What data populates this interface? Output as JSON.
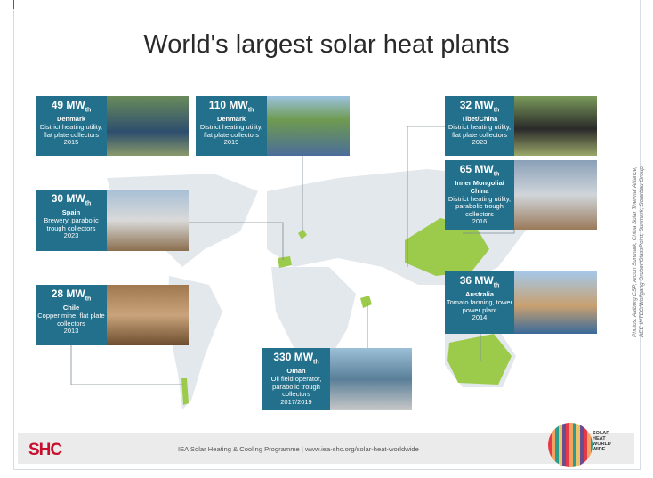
{
  "title": "World's largest solar heat plants",
  "plants": [
    {
      "capacity": "49 MW",
      "unit_sub": "th",
      "location": "Denmark",
      "description": "District heating utility, flat plate collectors",
      "year": "2015"
    },
    {
      "capacity": "110 MW",
      "unit_sub": "th",
      "location": "Denmark",
      "description": "District heating utility, flat plate collectors",
      "year": "2019"
    },
    {
      "capacity": "30 MW",
      "unit_sub": "th",
      "location": "Spain",
      "description": "Brewery, parabolic trough collectors",
      "year": "2023"
    },
    {
      "capacity": "28 MW",
      "unit_sub": "th",
      "location": "Chile",
      "description": "Copper mine, flat plate collectors",
      "year": "2013"
    },
    {
      "capacity": "330 MW",
      "unit_sub": "th",
      "location": "Oman",
      "description": "Oil field operator, parabolic trough collectors",
      "year": "2017/2019"
    },
    {
      "capacity": "32 MW",
      "unit_sub": "th",
      "location": "Tibet/China",
      "description": "District heating utility, flat plate collectors",
      "year": "2023"
    },
    {
      "capacity": "65 MW",
      "unit_sub": "th",
      "location": "Inner Mongolia/ China",
      "description": "District heating utility, parabolic trough collectors",
      "year": "2016"
    },
    {
      "capacity": "36 MW",
      "unit_sub": "th",
      "location": "Australia",
      "description": "Tomato farming, tower power plant",
      "year": "2014"
    }
  ],
  "credits": [
    "Photos: Aalborg CSP, Arcon Sunmark, China Solar Thermal Alliance,",
    "AEE INTEC/Wolfgang Gruber/GlassPoint, Sunmark, Solarbau Group"
  ],
  "footer": {
    "logo": "SHC",
    "text": "IEA Solar Heating & Cooling Programme | www.iea-shc.org/solar-heat-worldwide",
    "badge": [
      "SOLAR",
      "HEAT",
      "WORLD",
      "WIDE"
    ]
  }
}
